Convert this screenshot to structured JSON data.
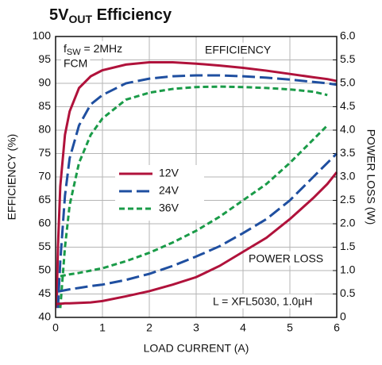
{
  "chart_data": {
    "type": "line",
    "title": [
      "5V",
      "OUT",
      " Efficiency"
    ],
    "x_label": "LOAD CURRENT (A)",
    "y_label": "EFFICIENCY (%)",
    "y2_label": "POWER LOSS (W)",
    "annotations": {
      "fsw": [
        "f",
        "SW",
        " = 2MHz"
      ],
      "mode": "FCM",
      "efficiency": "EFFICIENCY",
      "loss": "POWER LOSS",
      "inductor": "L = XFL5030, 1.0µH"
    },
    "x": [
      0.02,
      0.05,
      0.1,
      0.2,
      0.3,
      0.5,
      0.75,
      1,
      1.5,
      2,
      2.5,
      3,
      3.5,
      4,
      4.5,
      5,
      5.5,
      5.8,
      6
    ],
    "xlim": [
      0,
      6
    ],
    "xticks": [
      0,
      1,
      2,
      3,
      4,
      5,
      6
    ],
    "ylim": [
      40,
      100
    ],
    "yticks": [
      40,
      45,
      50,
      55,
      60,
      65,
      70,
      75,
      80,
      85,
      90,
      95,
      100
    ],
    "y2lim": [
      0,
      6
    ],
    "y2ticks": [
      0,
      0.5,
      {
        "value": 1,
        "label": "1.0"
      },
      1.5,
      {
        "value": 2,
        "label": "2.0"
      },
      2.5,
      {
        "value": 3,
        "label": "3.0"
      },
      3.5,
      {
        "value": 4,
        "label": "4.0"
      },
      4.5,
      {
        "value": 5,
        "label": "5.0"
      },
      5.5,
      {
        "value": 6,
        "label": "6.0"
      }
    ],
    "grid": true,
    "series": [
      {
        "name": "12V",
        "color": "#b0123b",
        "dash": "solid",
        "values": [
          42,
          55,
          68,
          79,
          84,
          89,
          91.5,
          92.8,
          94,
          94.5,
          94.5,
          94.2,
          93.8,
          93.3,
          92.7,
          92,
          91.3,
          90.9,
          90.5
        ]
      },
      {
        "name": "24V",
        "color": "#1f4fa0",
        "dash": "long",
        "values": [
          null,
          42,
          52,
          66,
          74,
          81,
          85.5,
          87.5,
          90,
          91,
          91.5,
          91.7,
          91.7,
          91.5,
          91.2,
          90.8,
          90.3,
          90,
          89.7
        ]
      },
      {
        "name": "36V",
        "color": "#1a9b48",
        "dash": "short",
        "values": [
          null,
          null,
          42,
          55,
          64,
          73,
          79,
          82.5,
          86.5,
          88,
          88.8,
          89.2,
          89.3,
          89.2,
          89,
          88.7,
          88.2,
          87.5,
          null
        ]
      },
      {
        "color": "#b0123b",
        "dash": "solid",
        "axis": "y2",
        "values": [
          0.28,
          0.29,
          0.29,
          0.3,
          0.3,
          0.31,
          0.32,
          0.35,
          0.45,
          0.56,
          0.7,
          0.86,
          1.1,
          1.4,
          1.7,
          2.1,
          2.55,
          2.85,
          3.1
        ]
      },
      {
        "color": "#1f4fa0",
        "dash": "long",
        "axis": "y2",
        "values": [
          null,
          0.55,
          0.56,
          0.58,
          0.6,
          0.63,
          0.67,
          0.7,
          0.8,
          0.93,
          1.1,
          1.3,
          1.52,
          1.8,
          2.1,
          2.5,
          3.0,
          3.3,
          3.5
        ]
      },
      {
        "color": "#1a9b48",
        "dash": "short",
        "axis": "y2",
        "values": [
          null,
          null,
          0.88,
          0.9,
          0.92,
          0.95,
          1.0,
          1.05,
          1.2,
          1.38,
          1.6,
          1.85,
          2.15,
          2.5,
          2.85,
          3.3,
          3.8,
          4.1,
          null
        ]
      }
    ]
  }
}
